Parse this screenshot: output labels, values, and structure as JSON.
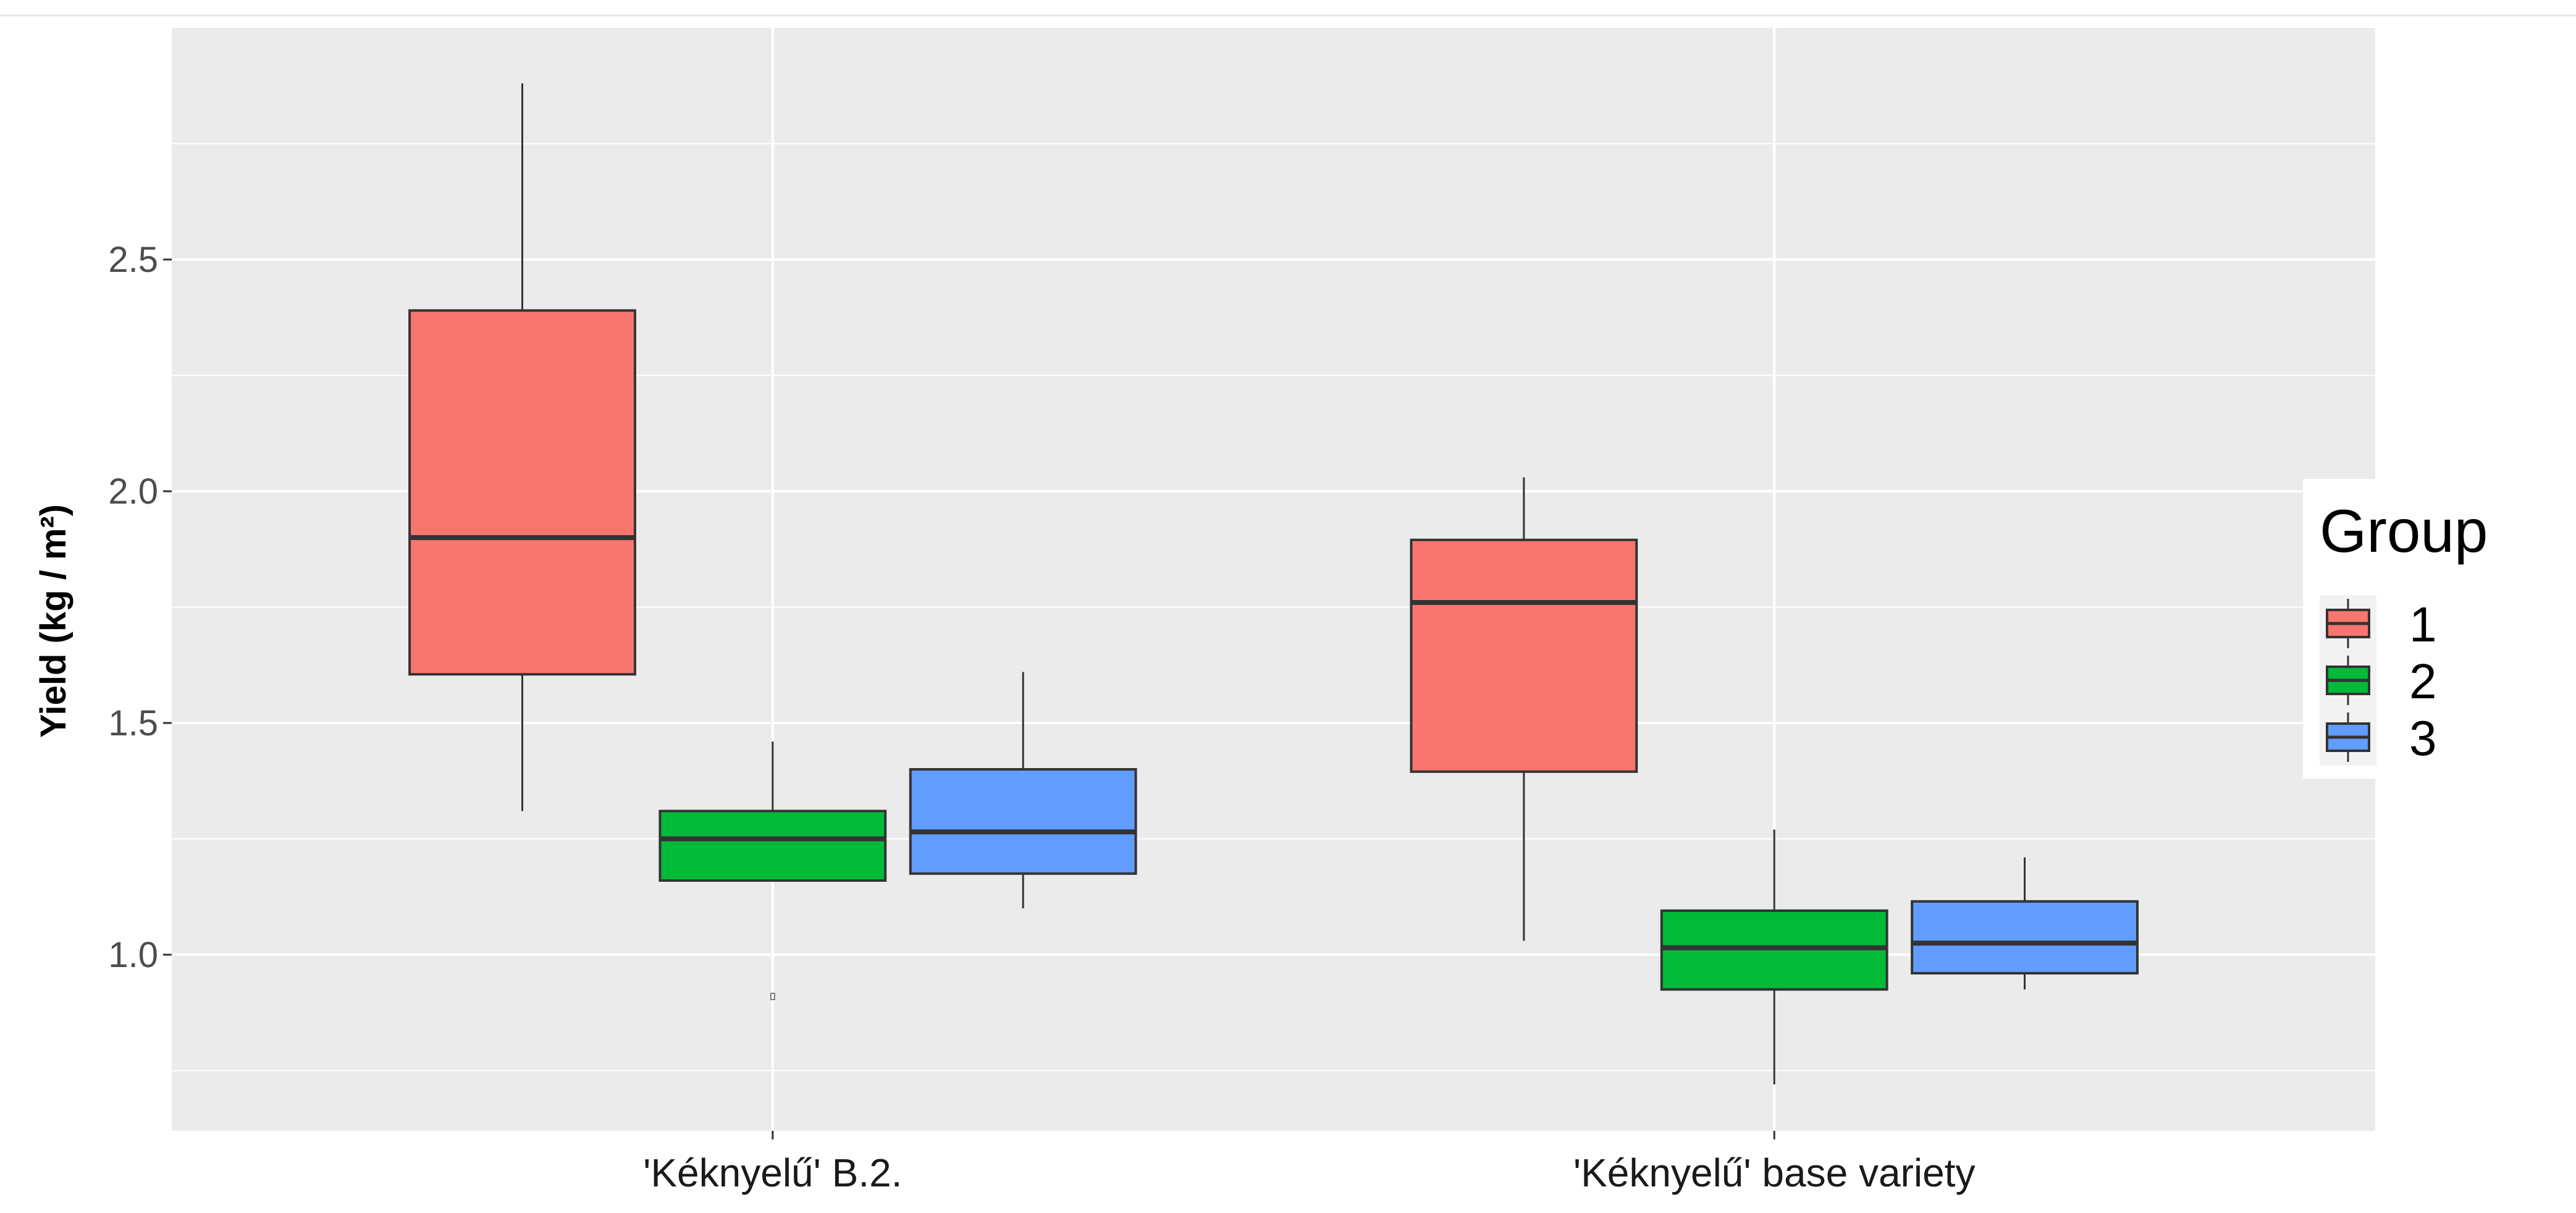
{
  "chart_data": {
    "type": "boxplot",
    "title": "",
    "xlabel": "",
    "ylabel": "Yield (kg / m²)",
    "ylim": [
      0.62,
      3.0
    ],
    "yticks": [
      "1.0",
      "1.5",
      "2.0",
      "2.5"
    ],
    "grid": true,
    "legend": {
      "title": "Group",
      "position": "right"
    },
    "categories": [
      "'Kéknyelű' B.2.",
      "'Kéknyelű' base variety"
    ],
    "series": [
      {
        "name": "1",
        "color": "#F8766D",
        "values": [
          {
            "min": 1.31,
            "q1": 1.605,
            "median": 1.9,
            "q3": 2.39,
            "max": 2.88
          },
          {
            "min": 1.03,
            "q1": 1.395,
            "median": 1.76,
            "q3": 1.895,
            "max": 2.03
          }
        ]
      },
      {
        "name": "2",
        "color": "#00BA38",
        "values": [
          {
            "min": 1.16,
            "q1": 1.16,
            "median": 1.25,
            "q3": 1.31,
            "max": 1.46,
            "outliers": [
              0.91
            ]
          },
          {
            "min": 0.72,
            "q1": 0.925,
            "median": 1.015,
            "q3": 1.095,
            "max": 1.27
          }
        ]
      },
      {
        "name": "3",
        "color": "#619CFF",
        "values": [
          {
            "min": 1.1,
            "q1": 1.175,
            "median": 1.265,
            "q3": 1.4,
            "max": 1.61
          },
          {
            "min": 0.925,
            "q1": 0.96,
            "median": 1.025,
            "q3": 1.115,
            "max": 1.21
          }
        ]
      }
    ]
  }
}
